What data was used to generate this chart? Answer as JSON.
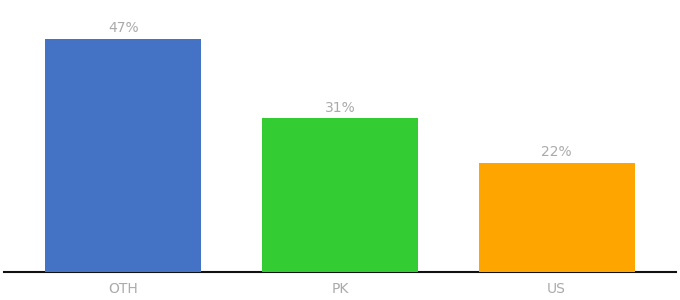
{
  "categories": [
    "OTH",
    "PK",
    "US"
  ],
  "values": [
    47,
    31,
    22
  ],
  "bar_colors": [
    "#4472C4",
    "#33CC33",
    "#FFA500"
  ],
  "labels": [
    "47%",
    "31%",
    "22%"
  ],
  "ylim": [
    0,
    54
  ],
  "background_color": "#ffffff",
  "label_color": "#aaaaaa",
  "label_fontsize": 10,
  "tick_fontsize": 10,
  "bar_width": 0.72,
  "tick_color": "#aaaaaa"
}
